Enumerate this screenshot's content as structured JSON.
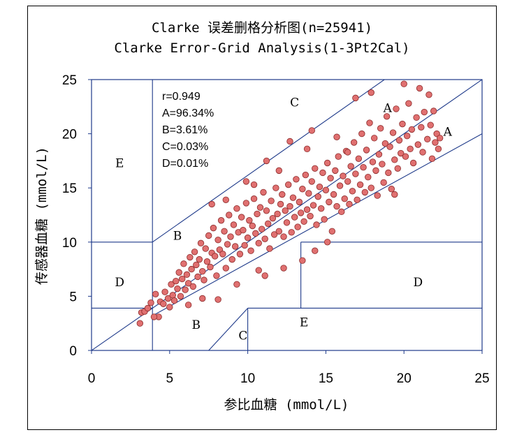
{
  "chart_data": {
    "type": "scatter",
    "title": "Clarke 误差删格分析图(n=25941)",
    "subtitle": "Clarke Error-Grid Analysis(1-3Pt2Cal)",
    "xlabel": "参比血糖 (mmol/L)",
    "ylabel": "传感器血糖 (mmol/L)",
    "xlim": [
      0,
      25
    ],
    "ylim": [
      0,
      25
    ],
    "x_ticks": [
      "0",
      "5",
      "10",
      "15",
      "20",
      "25"
    ],
    "y_ticks": [
      "0",
      "5",
      "10",
      "15",
      "20",
      "25"
    ],
    "grid": false,
    "marker_color": "#e07070",
    "marker_edge": "#8b2a2a",
    "stats": [
      "r=0.949",
      "A=96.34%",
      "B=3.61%",
      "C=0.03%",
      "D=0.01%"
    ],
    "zone_labels": [
      {
        "text": "A",
        "x": 18.95,
        "y": 22.4
      },
      {
        "text": "A",
        "x": 22.8,
        "y": 20.2
      },
      {
        "text": "B",
        "x": 5.5,
        "y": 10.6
      },
      {
        "text": "B",
        "x": 6.7,
        "y": 2.4
      },
      {
        "text": "C",
        "x": 13.0,
        "y": 22.9
      },
      {
        "text": "C",
        "x": 9.7,
        "y": 1.4
      },
      {
        "text": "D",
        "x": 1.8,
        "y": 6.3
      },
      {
        "text": "D",
        "x": 20.9,
        "y": 6.3
      },
      {
        "text": "E",
        "x": 1.8,
        "y": 17.3
      },
      {
        "text": "E",
        "x": 13.6,
        "y": 2.6
      }
    ],
    "zone_lines": [
      [
        [
          0,
          0
        ],
        [
          25,
          25
        ]
      ],
      [
        [
          3.9,
          3.2
        ],
        [
          25,
          20
        ]
      ],
      [
        [
          0,
          3.9
        ],
        [
          3.9,
          3.9
        ]
      ],
      [
        [
          3.9,
          10
        ],
        [
          18.75,
          25
        ]
      ],
      [
        [
          3.9,
          3.9
        ],
        [
          3.9,
          25
        ]
      ],
      [
        [
          0,
          10
        ],
        [
          3.9,
          10
        ]
      ],
      [
        [
          3.9,
          0
        ],
        [
          3.9,
          3.9
        ]
      ],
      [
        [
          10,
          0
        ],
        [
          10,
          3.9
        ]
      ],
      [
        [
          10,
          3.9
        ],
        [
          25,
          3.9
        ]
      ],
      [
        [
          7.5,
          0
        ],
        [
          10,
          3.9
        ]
      ],
      [
        [
          13.4,
          3.9
        ],
        [
          13.4,
          10
        ]
      ],
      [
        [
          13.4,
          10
        ],
        [
          25,
          10
        ]
      ]
    ],
    "series": [
      {
        "points": [
          [
            3.1,
            2.5
          ],
          [
            3.2,
            3.5
          ],
          [
            3.4,
            3.6
          ],
          [
            3.6,
            3.9
          ],
          [
            3.8,
            4.4
          ],
          [
            4.1,
            5.2
          ],
          [
            4.3,
            3.1
          ],
          [
            4.4,
            4.5
          ],
          [
            4.6,
            4.3
          ],
          [
            4.7,
            5.4
          ],
          [
            4.9,
            4.8
          ],
          [
            5.0,
            4.0
          ],
          [
            5.1,
            6.1
          ],
          [
            5.2,
            5.1
          ],
          [
            5.3,
            4.6
          ],
          [
            5.4,
            6.4
          ],
          [
            5.5,
            5.7
          ],
          [
            5.6,
            7.2
          ],
          [
            5.7,
            5.0
          ],
          [
            5.8,
            6.6
          ],
          [
            5.9,
            8.0
          ],
          [
            6.0,
            5.6
          ],
          [
            6.1,
            7.0
          ],
          [
            6.2,
            6.2
          ],
          [
            6.3,
            8.6
          ],
          [
            6.4,
            7.5
          ],
          [
            6.5,
            5.9
          ],
          [
            6.6,
            9.1
          ],
          [
            6.7,
            7.9
          ],
          [
            6.8,
            6.8
          ],
          [
            6.9,
            8.4
          ],
          [
            7.0,
            9.9
          ],
          [
            7.1,
            7.3
          ],
          [
            7.2,
            6.5
          ],
          [
            7.3,
            9.4
          ],
          [
            7.4,
            8.2
          ],
          [
            7.5,
            10.6
          ],
          [
            7.6,
            7.7
          ],
          [
            7.7,
            9.0
          ],
          [
            7.8,
            11.3
          ],
          [
            7.9,
            8.7
          ],
          [
            8.0,
            6.9
          ],
          [
            8.1,
            10.2
          ],
          [
            8.2,
            9.3
          ],
          [
            8.3,
            12.0
          ],
          [
            8.4,
            8.9
          ],
          [
            8.5,
            11.0
          ],
          [
            8.6,
            7.6
          ],
          [
            8.7,
            9.8
          ],
          [
            8.8,
            12.5
          ],
          [
            8.9,
            10.5
          ],
          [
            9.0,
            8.4
          ],
          [
            9.1,
            11.6
          ],
          [
            9.2,
            9.6
          ],
          [
            9.3,
            13.1
          ],
          [
            9.4,
            10.9
          ],
          [
            9.5,
            8.9
          ],
          [
            9.6,
            12.3
          ],
          [
            9.7,
            11.1
          ],
          [
            9.8,
            9.7
          ],
          [
            9.9,
            13.6
          ],
          [
            10.0,
            10.4
          ],
          [
            10.1,
            12.0
          ],
          [
            10.2,
            9.2
          ],
          [
            10.3,
            11.5
          ],
          [
            10.4,
            14.0
          ],
          [
            10.5,
            10.8
          ],
          [
            10.6,
            12.6
          ],
          [
            10.7,
            9.9
          ],
          [
            10.8,
            13.2
          ],
          [
            10.9,
            11.2
          ],
          [
            11.0,
            14.6
          ],
          [
            11.1,
            10.3
          ],
          [
            11.2,
            12.9
          ],
          [
            11.3,
            11.7
          ],
          [
            11.4,
            9.4
          ],
          [
            11.5,
            13.8
          ],
          [
            11.6,
            12.2
          ],
          [
            11.7,
            10.7
          ],
          [
            11.8,
            15.0
          ],
          [
            11.9,
            12.6
          ],
          [
            12.0,
            11.0
          ],
          [
            12.1,
            13.5
          ],
          [
            12.2,
            14.4
          ],
          [
            12.3,
            10.5
          ],
          [
            12.4,
            12.9
          ],
          [
            12.5,
            11.8
          ],
          [
            12.6,
            15.3
          ],
          [
            12.7,
            13.3
          ],
          [
            12.8,
            10.9
          ],
          [
            12.9,
            14.1
          ],
          [
            13.0,
            12.3
          ],
          [
            13.1,
            15.8
          ],
          [
            13.2,
            11.4
          ],
          [
            13.3,
            13.7
          ],
          [
            13.4,
            12.7
          ],
          [
            13.5,
            14.9
          ],
          [
            13.6,
            11.9
          ],
          [
            13.7,
            16.2
          ],
          [
            13.8,
            13.0
          ],
          [
            13.9,
            14.5
          ],
          [
            14.0,
            12.4
          ],
          [
            14.1,
            15.6
          ],
          [
            14.2,
            13.4
          ],
          [
            14.3,
            16.8
          ],
          [
            14.4,
            11.6
          ],
          [
            14.5,
            14.2
          ],
          [
            14.6,
            15.1
          ],
          [
            14.7,
            13.1
          ],
          [
            14.8,
            16.4
          ],
          [
            14.9,
            12.1
          ],
          [
            15.0,
            14.8
          ],
          [
            15.1,
            17.3
          ],
          [
            15.2,
            13.7
          ],
          [
            15.3,
            15.9
          ],
          [
            15.4,
            11.0
          ],
          [
            15.5,
            14.4
          ],
          [
            15.6,
            16.6
          ],
          [
            15.7,
            13.3
          ],
          [
            15.8,
            17.9
          ],
          [
            15.9,
            15.2
          ],
          [
            16.0,
            12.8
          ],
          [
            16.1,
            16.1
          ],
          [
            16.2,
            14.0
          ],
          [
            16.3,
            18.4
          ],
          [
            16.4,
            15.6
          ],
          [
            16.5,
            13.5
          ],
          [
            16.6,
            17.0
          ],
          [
            16.7,
            14.7
          ],
          [
            16.8,
            19.2
          ],
          [
            16.9,
            16.3
          ],
          [
            17.0,
            13.9
          ],
          [
            17.1,
            17.7
          ],
          [
            17.2,
            15.3
          ],
          [
            17.3,
            20.0
          ],
          [
            17.4,
            16.9
          ],
          [
            17.5,
            14.6
          ],
          [
            17.6,
            18.5
          ],
          [
            17.7,
            16.0
          ],
          [
            17.8,
            21.0
          ],
          [
            17.9,
            15.0
          ],
          [
            18.0,
            17.4
          ],
          [
            18.1,
            19.6
          ],
          [
            18.2,
            16.6
          ],
          [
            18.3,
            14.3
          ],
          [
            18.4,
            18.1
          ],
          [
            18.5,
            20.5
          ],
          [
            18.6,
            17.2
          ],
          [
            18.7,
            15.5
          ],
          [
            18.8,
            19.1
          ],
          [
            18.9,
            21.6
          ],
          [
            19.0,
            16.4
          ],
          [
            19.1,
            18.8
          ],
          [
            19.2,
            14.9
          ],
          [
            19.3,
            20.1
          ],
          [
            19.4,
            17.6
          ],
          [
            19.5,
            22.3
          ],
          [
            19.6,
            16.8
          ],
          [
            19.7,
            19.4
          ],
          [
            19.8,
            18.2
          ],
          [
            19.9,
            20.9
          ],
          [
            20.0,
            24.6
          ],
          [
            20.1,
            17.9
          ],
          [
            20.2,
            19.8
          ],
          [
            20.3,
            22.8
          ],
          [
            20.4,
            18.6
          ],
          [
            20.5,
            20.4
          ],
          [
            20.6,
            17.3
          ],
          [
            20.8,
            21.5
          ],
          [
            20.9,
            19.0
          ],
          [
            21.0,
            24.2
          ],
          [
            21.1,
            20.6
          ],
          [
            21.2,
            18.3
          ],
          [
            21.3,
            22.0
          ],
          [
            21.5,
            19.5
          ],
          [
            21.6,
            23.6
          ],
          [
            21.7,
            20.8
          ],
          [
            21.8,
            17.7
          ],
          [
            21.9,
            22.1
          ],
          [
            22.0,
            19.2
          ],
          [
            22.1,
            20.0
          ],
          [
            22.2,
            18.6
          ],
          [
            22.3,
            19.6
          ],
          [
            16.9,
            23.3
          ],
          [
            17.9,
            23.8
          ],
          [
            14.1,
            20.3
          ],
          [
            12.7,
            19.3
          ],
          [
            11.2,
            17.5
          ],
          [
            9.9,
            15.6
          ],
          [
            7.7,
            13.5
          ],
          [
            8.1,
            4.7
          ],
          [
            11.1,
            6.9
          ],
          [
            12.3,
            7.6
          ],
          [
            13.5,
            8.3
          ],
          [
            14.3,
            9.2
          ],
          [
            15.1,
            10.0
          ],
          [
            19.4,
            14.4
          ],
          [
            4.0,
            3.1
          ],
          [
            6.2,
            4.2
          ],
          [
            7.1,
            4.8
          ],
          [
            9.3,
            6.1
          ],
          [
            10.7,
            7.4
          ],
          [
            8.6,
            13.9
          ],
          [
            13.8,
            18.6
          ],
          [
            10.4,
            15.3
          ],
          [
            12.0,
            16.6
          ],
          [
            15.7,
            19.7
          ],
          [
            16.4,
            18.3
          ]
        ]
      }
    ]
  }
}
